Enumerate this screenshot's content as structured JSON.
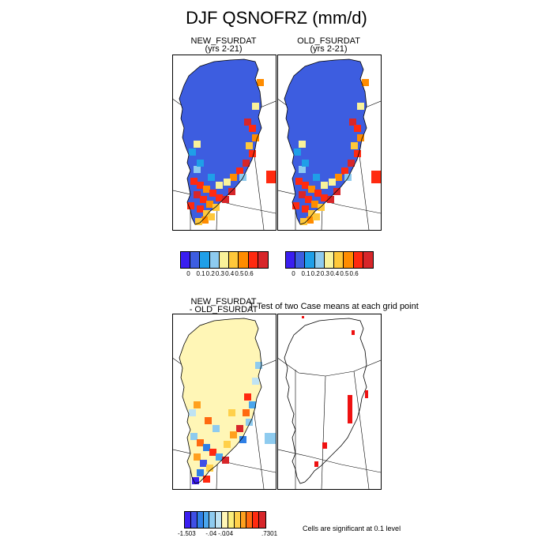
{
  "chart_data": {
    "type": "heatmap",
    "title": "DJF QSNOFRZ (mm/d)",
    "panels": [
      {
        "title_line1": "NEW_FSURDAT",
        "title_line2": "(yrs 2-21)"
      },
      {
        "title_line1": "OLD_FSURDAT",
        "title_line2": "(yrs 2-21)"
      },
      {
        "title_line1": "NEW_FSURDAT",
        "title_line2": "- OLD_FSURDAT"
      },
      {
        "title_line1": "T-Test of two Case means at each grid point",
        "title_line2": ""
      }
    ],
    "top_colorbar": {
      "colors": [
        "#3a1ef0",
        "#3d5de0",
        "#1f9fe8",
        "#8ecbef",
        "#f9f29a",
        "#ffc83a",
        "#ff8c00",
        "#ff2a10",
        "#d7262a"
      ],
      "labels": [
        "0",
        "0.1",
        "0.2",
        "0.3",
        "0.4",
        "0.5",
        "0.6"
      ]
    },
    "diff_colorbar": {
      "colors": [
        "#3a1ef0",
        "#3f4fe6",
        "#2e7fe6",
        "#4aa6ec",
        "#8ecbef",
        "#bfe3f3",
        "#fff6b6",
        "#fbed7a",
        "#ffd04a",
        "#ffa01e",
        "#ff6a10",
        "#ff2a10",
        "#d7262a"
      ],
      "labels": [
        "-1.503",
        "-.04",
        "-.0",
        ".04",
        ".7301"
      ]
    },
    "note": "Cells are significant at 0.1 level"
  }
}
